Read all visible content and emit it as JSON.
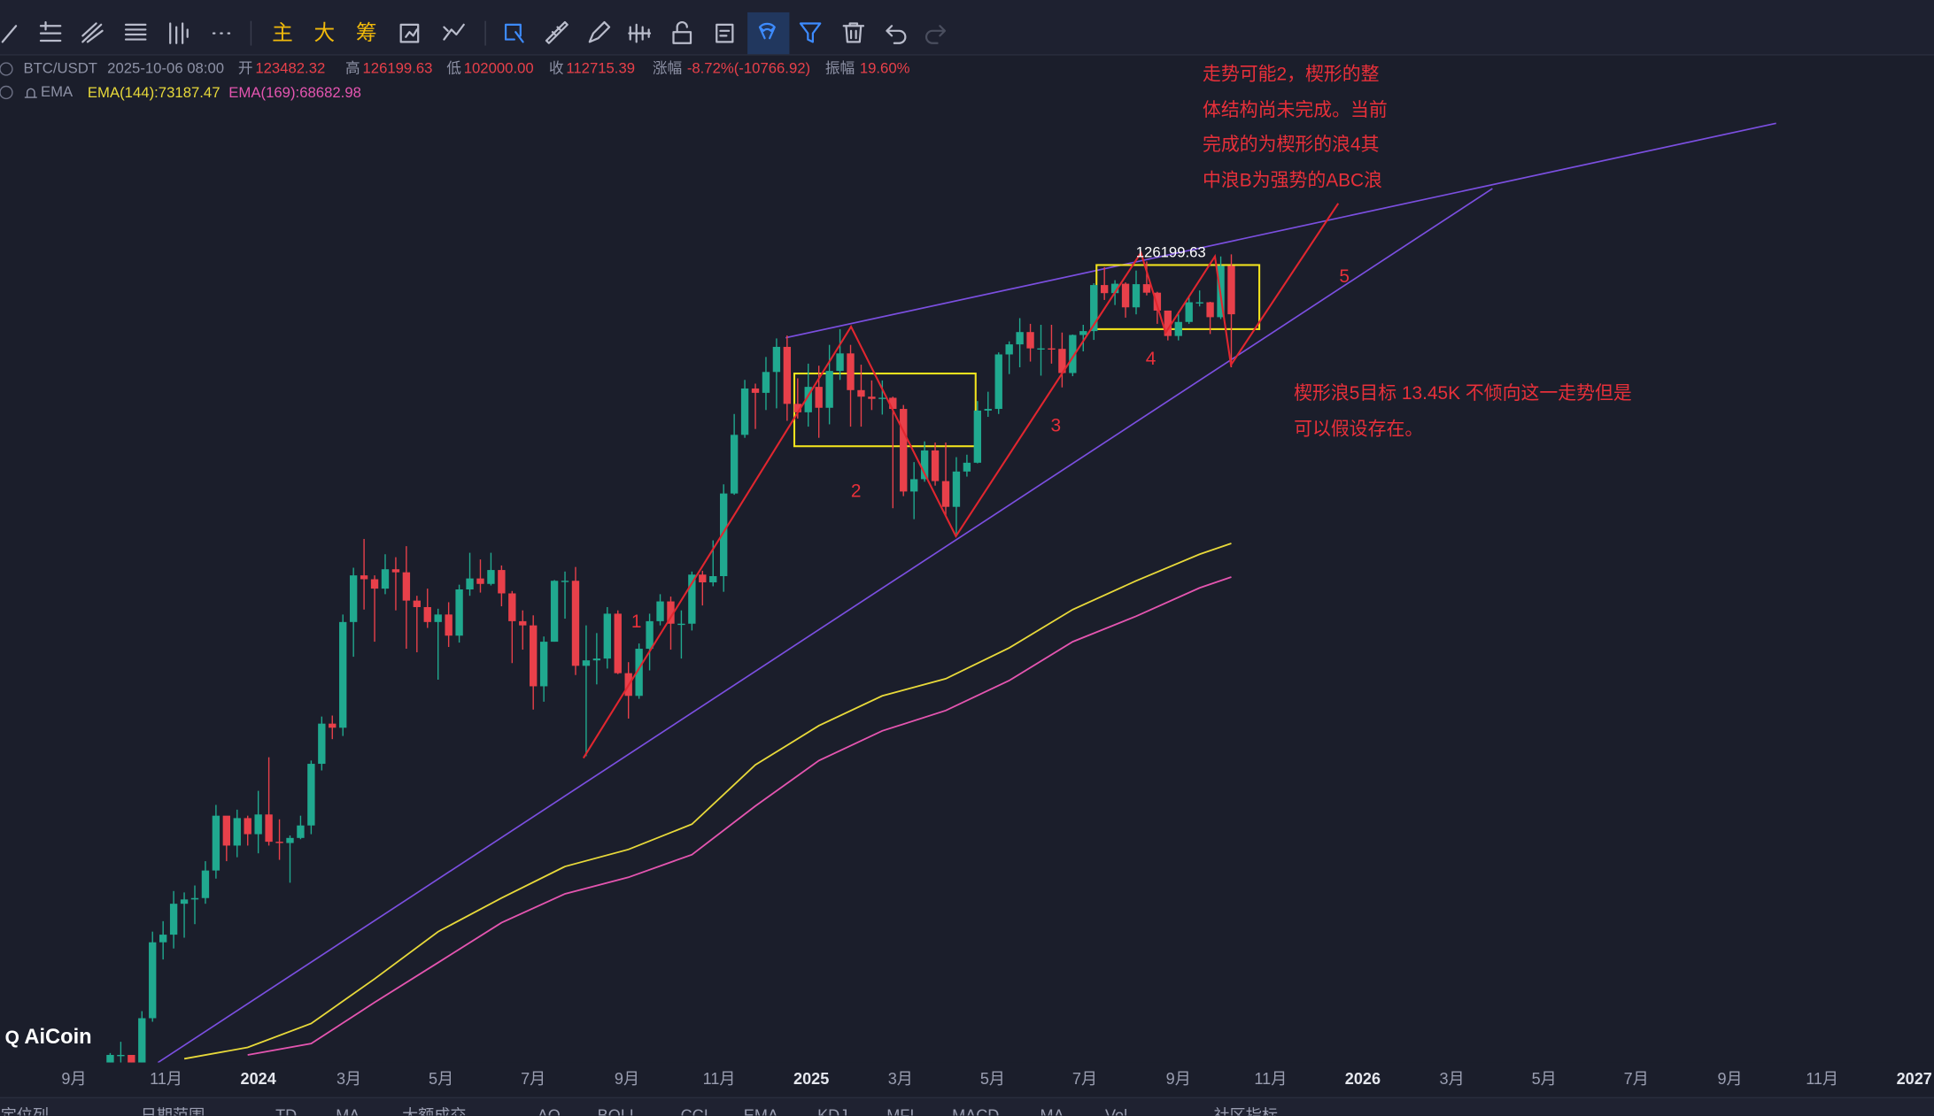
{
  "toolbar": {
    "items": [
      "主",
      "大",
      "筹"
    ]
  },
  "header": {
    "symbol": "BTC/USDT",
    "datetime": "2025-10-06 08:00",
    "open_label": "开",
    "high_label": "高",
    "low_label": "低",
    "low": "102000.00",
    "close_label": "收",
    "change_label": "涨幅",
    "change": "-8.72%(-10766.92)",
    "amplitude_label": "振幅",
    "amplitude": "19.60%",
    "indicator": "EMA"
  },
  "chart_data": {
    "type": "candlestick",
    "x": [
      "2023-09-04",
      "2023-09-11",
      "2023-09-18",
      "2023-09-25",
      "2023-10-02",
      "2023-10-09",
      "2023-10-16",
      "2023-10-23",
      "2023-10-30",
      "2023-11-06",
      "2023-11-13",
      "2023-11-20",
      "2023-11-27",
      "2023-12-04",
      "2023-12-11",
      "2023-12-18",
      "2023-12-25",
      "2024-01-01",
      "2024-01-08",
      "2024-01-15",
      "2024-01-22",
      "2024-01-29",
      "2024-02-05",
      "2024-02-12",
      "2024-02-19",
      "2024-02-26",
      "2024-03-04",
      "2024-03-11",
      "2024-03-18",
      "2024-03-25",
      "2024-04-01",
      "2024-04-08",
      "2024-04-15",
      "2024-04-22",
      "2024-04-29",
      "2024-05-06",
      "2024-05-13",
      "2024-05-20",
      "2024-05-27",
      "2024-06-03",
      "2024-06-10",
      "2024-06-17",
      "2024-06-24",
      "2024-07-01",
      "2024-07-08",
      "2024-07-15",
      "2024-07-22",
      "2024-07-29",
      "2024-08-05",
      "2024-08-12",
      "2024-08-19",
      "2024-08-26",
      "2024-09-02",
      "2024-09-09",
      "2024-09-16",
      "2024-09-23",
      "2024-09-30",
      "2024-10-07",
      "2024-10-14",
      "2024-10-21",
      "2024-10-28",
      "2024-11-04",
      "2024-11-11",
      "2024-11-18",
      "2024-11-25",
      "2024-12-02",
      "2024-12-09",
      "2024-12-16",
      "2024-12-23",
      "2024-12-30",
      "2025-01-06",
      "2025-01-13",
      "2025-01-20",
      "2025-01-27",
      "2025-02-03",
      "2025-02-10",
      "2025-02-17",
      "2025-02-24",
      "2025-03-03",
      "2025-03-10",
      "2025-03-17",
      "2025-03-24",
      "2025-03-31",
      "2025-04-07",
      "2025-04-14",
      "2025-04-21",
      "2025-04-28",
      "2025-05-05",
      "2025-05-12",
      "2025-05-19",
      "2025-05-26",
      "2025-06-02",
      "2025-06-09",
      "2025-06-16",
      "2025-06-23",
      "2025-06-30",
      "2025-07-07",
      "2025-07-14",
      "2025-07-21",
      "2025-07-28",
      "2025-08-04",
      "2025-08-11",
      "2025-08-18",
      "2025-08-25",
      "2025-09-01",
      "2025-09-08",
      "2025-09-15",
      "2025-09-22",
      "2025-09-29",
      "2025-10-06"
    ],
    "open": [
      25900,
      25800,
      26500,
      26300,
      27900,
      27900,
      27100,
      29900,
      34500,
      35000,
      37100,
      37400,
      37500,
      39500,
      43800,
      41400,
      43600,
      42300,
      43900,
      41700,
      41600,
      42000,
      43000,
      48300,
      52100,
      51700,
      63100,
      68900,
      68400,
      67200,
      69700,
      69300,
      65700,
      64900,
      63100,
      64000,
      61500,
      67100,
      68500,
      67800,
      69600,
      66600,
      63200,
      62700,
      55900,
      60800,
      68200,
      68200,
      58100,
      58700,
      58900,
      64100,
      57300,
      54900,
      60000,
      63200,
      65600,
      62900,
      62900,
      69000,
      68000,
      68800,
      80400,
      89800,
      98000,
      97200,
      101100,
      106000,
      95200,
      93700,
      98300,
      94500,
      101300,
      104700,
      97700,
      96500,
      96100,
      96300,
      94300,
      80700,
      82600,
      87200,
      82300,
      78400,
      83800,
      85200,
      94000,
      94300,
      104500,
      106500,
      109000,
      105700,
      105700,
      105600,
      100900,
      108400,
      109200,
      119100,
      117300,
      119400,
      114200,
      119300,
      117400,
      113500,
      108200,
      111100,
      115300,
      115300,
      112100,
      123482.32
    ],
    "high": [
      26200,
      26800,
      27400,
      28000,
      28600,
      27900,
      30300,
      35200,
      35900,
      38000,
      37900,
      38400,
      40200,
      44700,
      43500,
      44300,
      43800,
      45900,
      48900,
      43500,
      42200,
      43800,
      48600,
      52800,
      52900,
      64000,
      69900,
      73800,
      68900,
      71700,
      71300,
      72800,
      66300,
      67200,
      64700,
      65500,
      67700,
      71900,
      71000,
      71900,
      70200,
      66900,
      64500,
      63900,
      61400,
      68300,
      69400,
      70000,
      62700,
      61800,
      64900,
      64500,
      58500,
      60600,
      64100,
      66500,
      66200,
      64500,
      69400,
      69500,
      73600,
      81800,
      93400,
      99600,
      98900,
      104000,
      107700,
      108300,
      99900,
      102700,
      102300,
      106400,
      109600,
      106400,
      102500,
      99500,
      99500,
      96500,
      95000,
      85300,
      88700,
      88500,
      88500,
      86100,
      86500,
      95700,
      97400,
      104900,
      107100,
      111900,
      110700,
      110500,
      110500,
      108900,
      108500,
      110500,
      119500,
      123200,
      120200,
      119700,
      122400,
      124500,
      117600,
      113500,
      113300,
      116700,
      117900,
      115400,
      125700,
      126199.63
    ],
    "low": [
      24900,
      25100,
      26000,
      26000,
      27200,
      26600,
      26800,
      29700,
      33400,
      34100,
      34800,
      35700,
      37100,
      38900,
      40200,
      40500,
      41400,
      40800,
      41400,
      40300,
      38600,
      41900,
      42300,
      47700,
      50600,
      50900,
      59100,
      64600,
      60800,
      66500,
      64500,
      60000,
      59600,
      62400,
      56600,
      60200,
      60700,
      66300,
      66700,
      67600,
      65000,
      58400,
      59900,
      53500,
      54300,
      60800,
      63500,
      57100,
      49000,
      56100,
      57800,
      57200,
      52600,
      54600,
      57600,
      62700,
      59900,
      58900,
      62100,
      65100,
      67500,
      66800,
      80200,
      89300,
      90800,
      94100,
      94400,
      92200,
      92600,
      91200,
      89300,
      91600,
      99600,
      91200,
      91200,
      94100,
      93300,
      78200,
      80000,
      76600,
      82200,
      81600,
      77200,
      74500,
      83000,
      85100,
      92900,
      93400,
      100700,
      102000,
      103100,
      100400,
      102700,
      98200,
      100300,
      105100,
      107400,
      115800,
      114700,
      112000,
      112700,
      116800,
      110700,
      107300,
      107300,
      110700,
      114400,
      108600,
      111700,
      102000
    ],
    "close": [
      25800,
      26500,
      26300,
      27900,
      27900,
      27100,
      29900,
      34500,
      35000,
      37100,
      37400,
      37500,
      39500,
      43800,
      41400,
      43600,
      42300,
      43900,
      41700,
      41600,
      42000,
      43000,
      48300,
      52100,
      51700,
      63100,
      68900,
      68400,
      67200,
      69700,
      69300,
      65700,
      64900,
      63100,
      64000,
      61500,
      67100,
      68500,
      67800,
      69600,
      66600,
      63200,
      62700,
      55900,
      60800,
      68200,
      68200,
      58100,
      58700,
      58900,
      64100,
      57300,
      54900,
      60000,
      63200,
      65600,
      62900,
      62900,
      69000,
      68000,
      68800,
      80400,
      89800,
      98000,
      97200,
      101100,
      106000,
      95200,
      93700,
      98300,
      94500,
      101300,
      104700,
      97700,
      96500,
      96100,
      96300,
      94300,
      80700,
      82600,
      87200,
      82300,
      78400,
      83800,
      85200,
      94000,
      94300,
      104500,
      106500,
      109000,
      105700,
      105700,
      105600,
      100900,
      108400,
      109200,
      119100,
      117300,
      119400,
      114200,
      119300,
      117400,
      113500,
      108200,
      111100,
      115300,
      115300,
      112100,
      123500,
      112715.39
    ],
    "up_color": "#20a98f",
    "down_color": "#e8404a",
    "yscale": "log",
    "ylim": [
      27500,
      183600
    ],
    "xlim": [
      "2023-07",
      "2027-01"
    ],
    "grid": false,
    "xticks": [
      {
        "value": "2023-09",
        "label": "9月"
      },
      {
        "value": "2023-11",
        "label": "11月"
      },
      {
        "value": "2024-01",
        "label": "2024"
      },
      {
        "value": "2024-03",
        "label": "3月"
      },
      {
        "value": "2024-05",
        "label": "5月"
      },
      {
        "value": "2024-07",
        "label": "7月"
      },
      {
        "value": "2024-09",
        "label": "9月"
      },
      {
        "value": "2024-11",
        "label": "11月"
      },
      {
        "value": "2025-01",
        "label": "2025"
      },
      {
        "value": "2025-03",
        "label": "3月"
      },
      {
        "value": "2025-05",
        "label": "5月"
      },
      {
        "value": "2025-07",
        "label": "7月"
      },
      {
        "value": "2025-09",
        "label": "9月"
      },
      {
        "value": "2025-11",
        "label": "11月"
      },
      {
        "value": "2026-01",
        "label": "2026"
      },
      {
        "value": "2026-03",
        "label": "3月"
      },
      {
        "value": "2026-05",
        "label": "5月"
      },
      {
        "value": "2026-07",
        "label": "7月"
      },
      {
        "value": "2026-09",
        "label": "9月"
      },
      {
        "value": "2026-11",
        "label": "11月"
      },
      {
        "value": "2027-01",
        "label": "2027"
      }
    ],
    "series": [
      {
        "name": "EMA(144)",
        "color": "#e8d93a",
        "x": [
          "2023-11-13",
          "2023-12-25",
          "2024-02-05",
          "2024-03-18",
          "2024-04-29",
          "2024-06-10",
          "2024-07-22",
          "2024-09-02",
          "2024-10-14",
          "2024-11-25",
          "2025-01-06",
          "2025-02-17",
          "2025-03-31",
          "2025-05-12",
          "2025-06-23",
          "2025-08-04",
          "2025-09-15",
          "2025-10-06"
        ],
        "values": [
          27700,
          28300,
          29600,
          32200,
          35200,
          37500,
          39800,
          41100,
          43100,
          48200,
          51900,
          54900,
          56700,
          60100,
          64600,
          68200,
          71700,
          73187.47
        ]
      },
      {
        "name": "EMA(169)",
        "color": "#e455b0",
        "x": [
          "2023-12-25",
          "2024-02-05",
          "2024-03-18",
          "2024-04-29",
          "2024-06-10",
          "2024-07-22",
          "2024-09-02",
          "2024-10-14",
          "2024-11-25",
          "2025-01-06",
          "2025-02-17",
          "2025-03-31",
          "2025-05-12",
          "2025-06-23",
          "2025-08-04",
          "2025-09-15",
          "2025-10-06"
        ],
        "values": [
          27900,
          28500,
          30800,
          33200,
          35800,
          37800,
          39000,
          40700,
          44600,
          48600,
          51400,
          53400,
          56500,
          60800,
          63800,
          67300,
          68682.98
        ]
      }
    ],
    "annotations": [
      "走势可能2，楔形的整",
      "体结构尚未完成。当前",
      "完成的为楔形的浪4其",
      "中浪B为强势的ABC浪"
    ],
    "target_note": [
      "楔形浪5目标 13.45K 不倾向这一走势但是",
      "可以假设存在。"
    ],
    "wave_labels": [
      "1",
      "2",
      "3",
      "4",
      "5"
    ]
  },
  "watermark": "AiCoin",
  "bottom_tabs": [
    "定位列",
    "日期范围",
    "TD",
    "MA",
    "大额成交",
    "AO",
    "BOLL",
    "CCI",
    "EMA",
    "KDJ",
    "MFI",
    "MACD",
    "MA",
    "Vol",
    "社区指标"
  ]
}
